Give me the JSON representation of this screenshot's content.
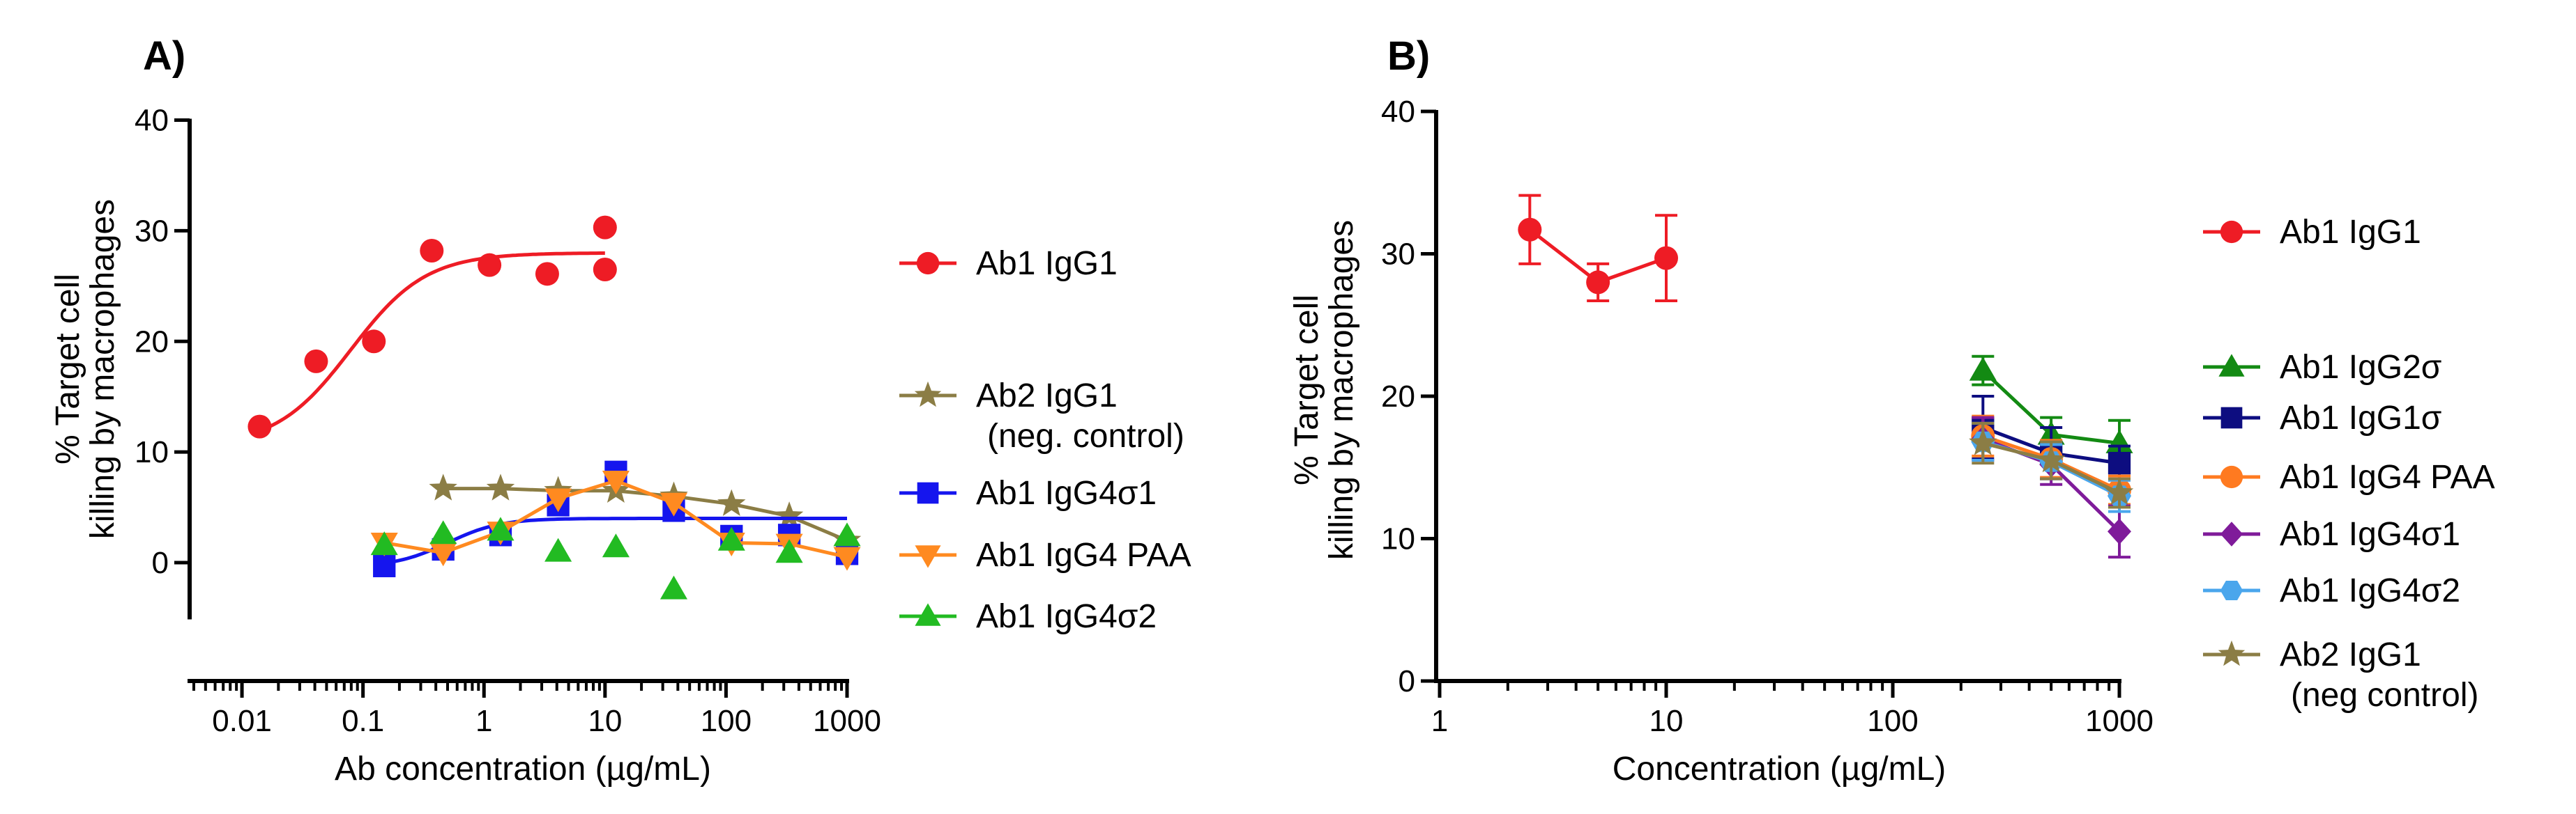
{
  "chart_data": [
    {
      "panel": "A)",
      "type": "scatter",
      "xscale": "log",
      "xlabel": "Ab concentration (µg/mL)",
      "ylabel": [
        "% Target cell",
        "killing by macrophages"
      ],
      "xlim": [
        0.004,
        1000
      ],
      "ylim": [
        -5,
        40
      ],
      "xticks": [
        0.01,
        0.1,
        1,
        10,
        100,
        1000
      ],
      "xtick_labels": [
        "0.01",
        "0.1",
        "1",
        "10",
        "100",
        "1000"
      ],
      "yticks": [
        0,
        10,
        20,
        30,
        40
      ],
      "ytick_labels": [
        "0",
        "10",
        "20",
        "30",
        "40"
      ],
      "series": [
        {
          "name": "Ab1 IgG1",
          "color": "#ee1c25",
          "marker": "circle",
          "line": "fit",
          "x": [
            0.014,
            0.041,
            0.123,
            0.37,
            1.11,
            3.33,
            10,
            10
          ],
          "y": [
            12.3,
            18.2,
            20.0,
            28.2,
            26.9,
            26.1,
            30.3,
            26.5
          ],
          "fit": {
            "bottom": 10.5,
            "top": 28.0,
            "logEC50": -1.1,
            "hill": 1.4,
            "xmin": 0.014,
            "xmax": 10
          }
        },
        {
          "name": "Ab2 IgG1",
          "name2": "(neg. control)",
          "color": "#8b7d45",
          "marker": "star",
          "line": "connect",
          "x": [
            0.46,
            1.37,
            4.1,
            12.3,
            37,
            111,
            333,
            1000
          ],
          "y": [
            6.7,
            6.7,
            6.5,
            6.5,
            6.0,
            5.3,
            4.2,
            2.0
          ]
        },
        {
          "name": "Ab1 IgG4σ1",
          "color": "#1515ee",
          "marker": "square",
          "line": "fit",
          "x": [
            0.15,
            0.46,
            1.37,
            4.1,
            12.3,
            37,
            111,
            333,
            1000
          ],
          "y": [
            -0.3,
            1.2,
            2.5,
            5.2,
            8.2,
            4.7,
            2.4,
            2.5,
            0.8
          ],
          "fit": {
            "bottom": -0.4,
            "top": 4.0,
            "logEC50": -0.3,
            "hill": 2.0,
            "xmin": 0.15,
            "xmax": 1000
          }
        },
        {
          "name": "Ab1 IgG4 PAA",
          "color": "#ff8a20",
          "marker": "tri-down",
          "line": "connect",
          "x": [
            0.15,
            0.46,
            1.37,
            4.1,
            12.3,
            37,
            111,
            333,
            1000
          ],
          "y": [
            1.8,
            0.9,
            2.8,
            5.8,
            7.4,
            5.4,
            1.8,
            1.7,
            0.5
          ]
        },
        {
          "name": "Ab1 IgG4σ2",
          "color": "#22bb22",
          "marker": "tri-up",
          "line": "none",
          "x": [
            0.15,
            0.46,
            1.37,
            4.1,
            12.3,
            37,
            111,
            333,
            1000
          ],
          "y": [
            1.6,
            2.6,
            2.9,
            1.0,
            1.4,
            -2.4,
            2.0,
            0.9,
            2.4
          ]
        }
      ]
    },
    {
      "panel": "B)",
      "type": "line",
      "xscale": "log",
      "xlabel": "Concentration (µg/mL)",
      "ylabel": [
        "% Target cell",
        "killing by macrophages"
      ],
      "xlim": [
        1,
        1000
      ],
      "ylim": [
        0,
        40
      ],
      "xticks": [
        1,
        10,
        100,
        1000
      ],
      "xtick_labels": [
        "1",
        "10",
        "100",
        "1000"
      ],
      "yticks": [
        0,
        10,
        20,
        30,
        40
      ],
      "ytick_labels": [
        "0",
        "10",
        "20",
        "30",
        "40"
      ],
      "series": [
        {
          "name": "Ab1 IgG1",
          "color": "#ee1c25",
          "marker": "circle",
          "x": [
            2.5,
            5,
            10
          ],
          "y": [
            31.7,
            28.0,
            29.7
          ],
          "err": [
            2.4,
            1.3,
            3.0
          ]
        },
        {
          "name": "Ab1 IgG2σ",
          "color": "#138a13",
          "marker": "tri-up",
          "x": [
            250,
            500,
            1000
          ],
          "y": [
            21.8,
            17.3,
            16.7
          ],
          "err": [
            1.0,
            1.2,
            1.6
          ]
        },
        {
          "name": "Ab1 IgG1σ",
          "color": "#0d0d80",
          "marker": "square",
          "x": [
            250,
            500,
            1000
          ],
          "y": [
            17.8,
            16.0,
            15.3
          ],
          "err": [
            2.2,
            1.8,
            1.2
          ]
        },
        {
          "name": "Ab1 IgG4 PAA",
          "color": "#ff7a20",
          "marker": "circle",
          "x": [
            250,
            500,
            1000
          ],
          "y": [
            17.2,
            15.6,
            13.4
          ],
          "err": [
            1.4,
            1.3,
            1.0
          ]
        },
        {
          "name": "Ab1 IgG4σ1",
          "color": "#7f1b9a",
          "marker": "diamond",
          "x": [
            250,
            500,
            1000
          ],
          "y": [
            17.0,
            15.2,
            10.5
          ],
          "err": [
            1.5,
            1.4,
            1.8
          ]
        },
        {
          "name": "Ab1 IgG4σ2",
          "color": "#4aa6ec",
          "marker": "hexagon",
          "x": [
            250,
            500,
            1000
          ],
          "y": [
            16.8,
            15.4,
            13.0
          ],
          "err": [
            1.3,
            1.2,
            1.1
          ]
        },
        {
          "name": "Ab2 IgG1",
          "name2": "(neg control)",
          "color": "#8b7d45",
          "marker": "star",
          "x": [
            250,
            500,
            1000
          ],
          "y": [
            16.7,
            15.5,
            13.2
          ],
          "err": [
            1.4,
            1.3,
            1.0
          ]
        }
      ]
    }
  ]
}
